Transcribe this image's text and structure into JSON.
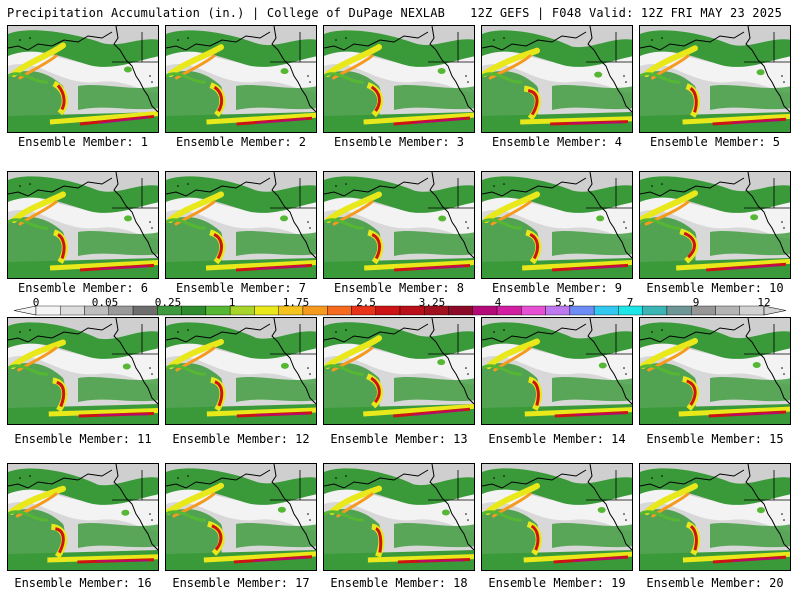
{
  "header": {
    "title": "Precipitation Accumulation (in.) | College of DuPage NEXLAB",
    "run_info": "12Z GEFS | F048 Valid: 12Z FRI MAY 23 2025"
  },
  "panel_label_prefix": "Ensemble Member:",
  "members": [
    "1",
    "2",
    "3",
    "4",
    "5",
    "6",
    "7",
    "8",
    "9",
    "10",
    "11",
    "12",
    "13",
    "14",
    "15",
    "16",
    "17",
    "18",
    "19",
    "20"
  ],
  "colorbar": {
    "tick_labels": [
      "0",
      "0.05",
      "0.25",
      "1",
      "1.75",
      "2.5",
      "3.25",
      "4",
      "5.5",
      "7",
      "9",
      "12"
    ],
    "colors": [
      "#f4f4f4",
      "#dcdcdc",
      "#bebebe",
      "#9a9a9a",
      "#6e6e6e",
      "#3f9a3f",
      "#2e8b2e",
      "#55b733",
      "#a8d42a",
      "#e8e81a",
      "#f5c21e",
      "#f59a1e",
      "#f56a1e",
      "#e63319",
      "#cc1414",
      "#b80f19",
      "#a0101e",
      "#8c0a28",
      "#b40a78",
      "#d21ea0",
      "#e650d2",
      "#be78f0",
      "#6e8cf5",
      "#32c8f0",
      "#1ee6e6",
      "#3cb4b4",
      "#6e9696",
      "#969696",
      "#b4b4b4",
      "#d2d2d2"
    ]
  }
}
